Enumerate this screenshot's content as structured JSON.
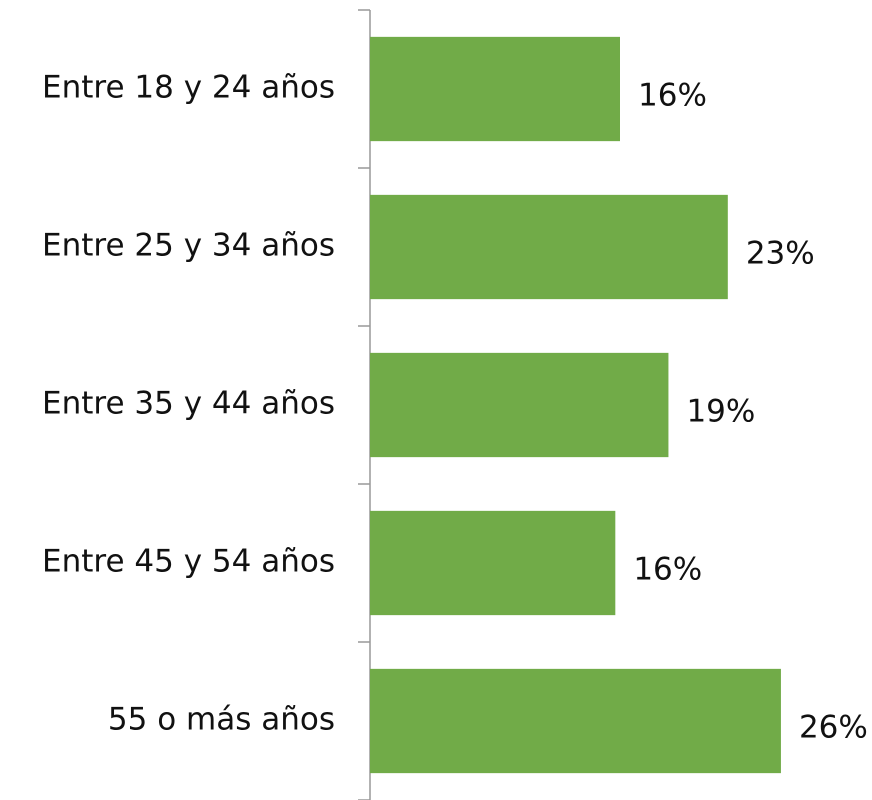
{
  "chart_data": {
    "type": "hbar",
    "categories": [
      "Entre 18 y 24 años",
      "Entre 25 y 34 años",
      "Entre 35 y 44 años",
      "Entre 45 y 54 años",
      "55 o más años"
    ],
    "values": [
      16,
      22.9,
      19.1,
      15.7,
      26.3
    ],
    "value_labels": [
      "16%",
      "23%",
      "19%",
      "16%",
      "26%"
    ],
    "color": "#71ab48",
    "xlim": [
      0,
      32
    ]
  }
}
